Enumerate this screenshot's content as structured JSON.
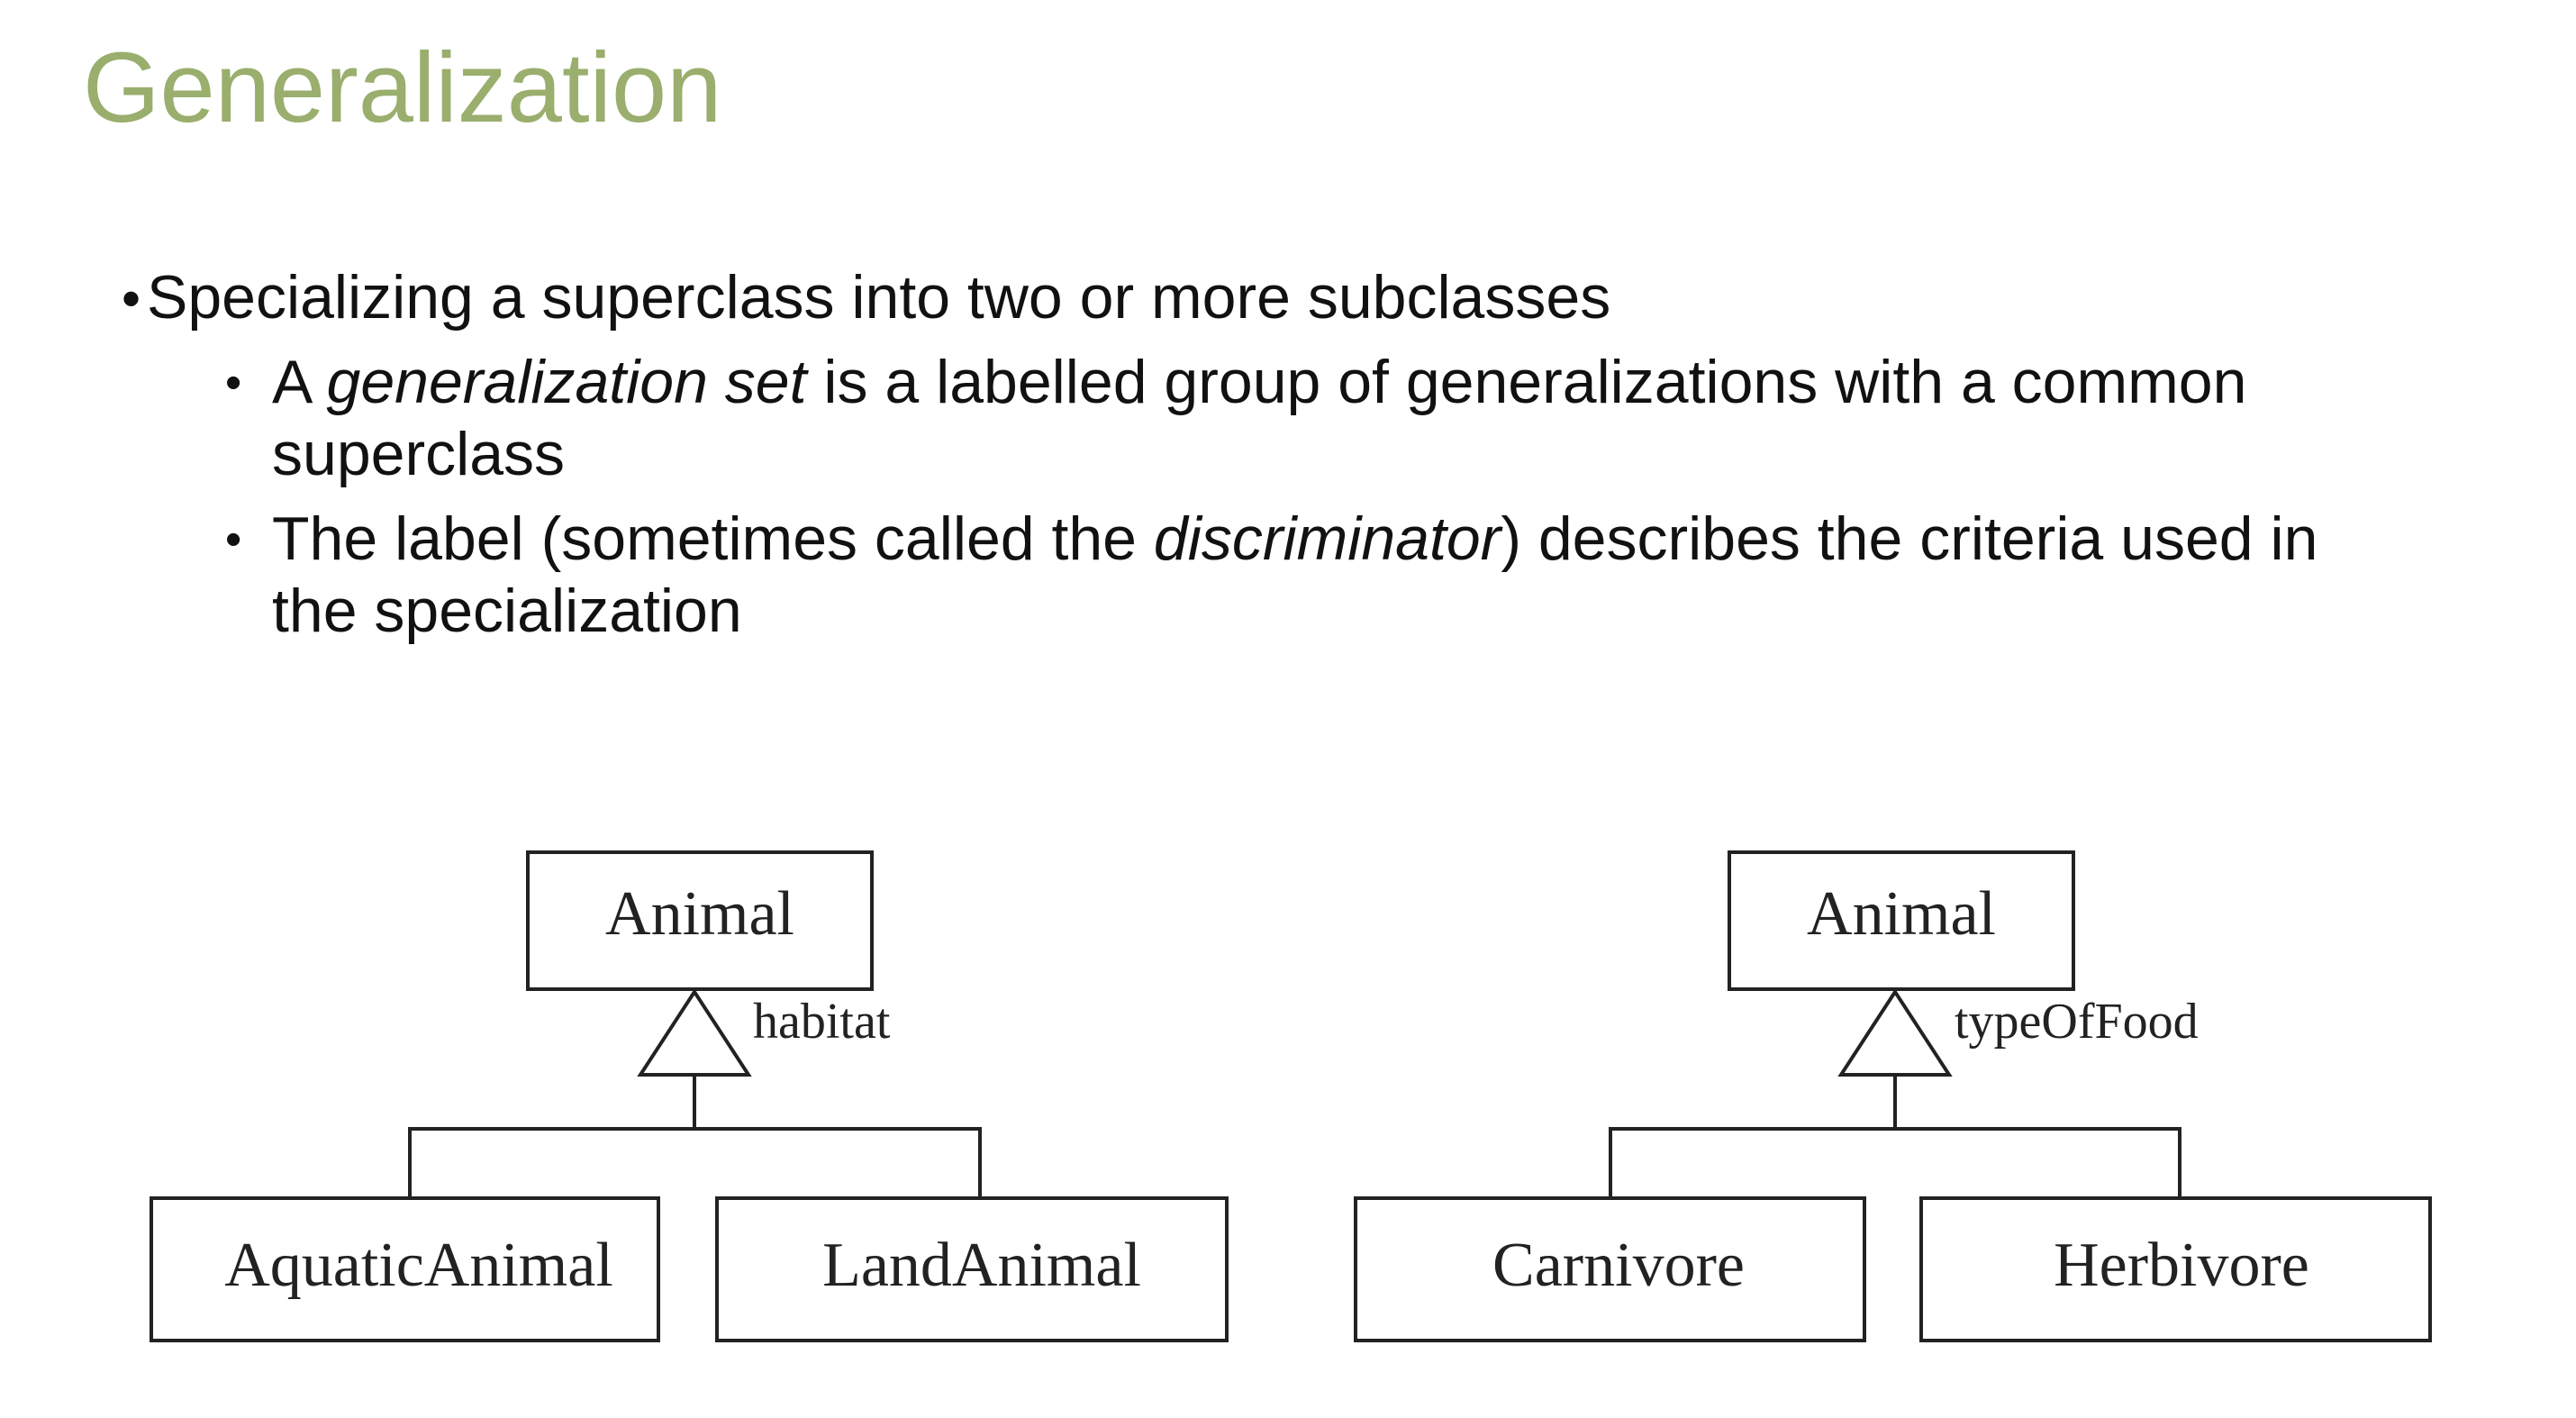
{
  "slide": {
    "title": "Generalization",
    "bullets": {
      "main": {
        "marker": "•",
        "text": "Specializing a superclass into two or more subclasses"
      },
      "sub1": {
        "marker": "•",
        "prefix": "A ",
        "italic": "generalization set",
        "suffix": " is a labelled group of generalizations with a common",
        "continuation": "superclass"
      },
      "sub2": {
        "marker": "•",
        "prefix": "The label (sometimes called the ",
        "italic": "discriminator",
        "suffix": ") describes the criteria used in",
        "continuation": "the specialization"
      }
    }
  },
  "diagrams": [
    {
      "superclass": "Animal",
      "discriminator": "habitat",
      "subclasses": [
        "AquaticAnimal",
        "LandAnimal"
      ]
    },
    {
      "superclass": "Animal",
      "discriminator": "typeOfFood",
      "subclasses": [
        "Carnivore",
        "Herbivore"
      ]
    }
  ],
  "colors": {
    "title": "#9aae6d",
    "text": "#111111",
    "diagram_stroke": "#222222"
  }
}
